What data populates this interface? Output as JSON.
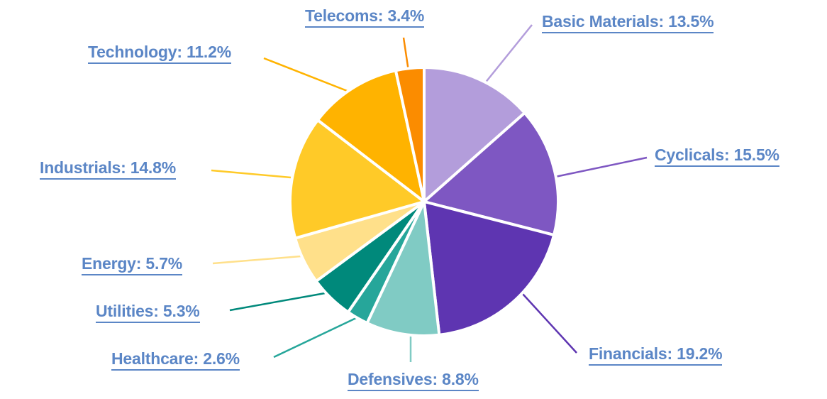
{
  "chart_data": {
    "type": "pie",
    "title": "",
    "start_angle_deg": 0,
    "direction": "clockwise",
    "center": [
      598,
      284
    ],
    "radius": 189,
    "label_color": "#5b86c6",
    "slices": [
      {
        "name": "Basic Materials",
        "value": 13.5,
        "color": "#b39ddb",
        "label": "Basic Materials: 13.5%",
        "label_pos": [
          764,
          16
        ],
        "line": [
          [
            683,
            118
          ],
          [
            750,
            35
          ]
        ]
      },
      {
        "name": "Cyclicals",
        "value": 15.5,
        "color": "#7e57c2",
        "label": "Cyclicals: 15.5%",
        "label_pos": [
          923,
          204
        ],
        "line": [
          [
            783,
            249
          ],
          [
            912,
            222
          ]
        ]
      },
      {
        "name": "Financials",
        "value": 19.2,
        "color": "#5e35b1",
        "label": "Financials: 19.2%",
        "label_pos": [
          830,
          484
        ],
        "line": [
          [
            737,
            414
          ],
          [
            813,
            497
          ]
        ]
      },
      {
        "name": "Defensives",
        "value": 8.8,
        "color": "#80cbc4",
        "label": "Defensives: 8.8%",
        "label_pos": [
          490,
          520
        ],
        "line": [
          [
            579,
            474
          ],
          [
            579,
            510
          ]
        ]
      },
      {
        "name": "Healthcare",
        "value": 2.6,
        "color": "#26a69a",
        "label": "Healthcare: 2.6%",
        "label_pos": [
          157,
          491
        ],
        "line": [
          [
            502,
            448
          ],
          [
            386,
            503
          ]
        ]
      },
      {
        "name": "Utilities",
        "value": 5.3,
        "color": "#00897b",
        "label": "Utilities: 5.3%",
        "label_pos": [
          135,
          424
        ],
        "line": [
          [
            458,
            413
          ],
          [
            324,
            437
          ]
        ]
      },
      {
        "name": "Energy",
        "value": 5.7,
        "color": "#ffe08a",
        "label": "Energy: 5.7%",
        "label_pos": [
          115,
          357
        ],
        "line": [
          [
            424,
            361
          ],
          [
            300,
            371
          ]
        ]
      },
      {
        "name": "Industrials",
        "value": 14.8,
        "color": "#ffca28",
        "label": "Industrials: 14.8%",
        "label_pos": [
          56,
          222
        ],
        "line": [
          [
            410,
            250
          ],
          [
            298,
            240
          ]
        ]
      },
      {
        "name": "Technology",
        "value": 11.2,
        "color": "#ffb300",
        "label": "Technology: 11.2%",
        "label_pos": [
          124,
          59
        ],
        "line": [
          [
            492,
            129
          ],
          [
            372,
            82
          ]
        ]
      },
      {
        "name": "Telecoms",
        "value": 3.4,
        "color": "#fb8c00",
        "label": "Telecoms: 3.4%",
        "label_pos": [
          430,
          8
        ],
        "line": [
          [
            576,
            100
          ],
          [
            569,
            53
          ]
        ]
      }
    ]
  }
}
